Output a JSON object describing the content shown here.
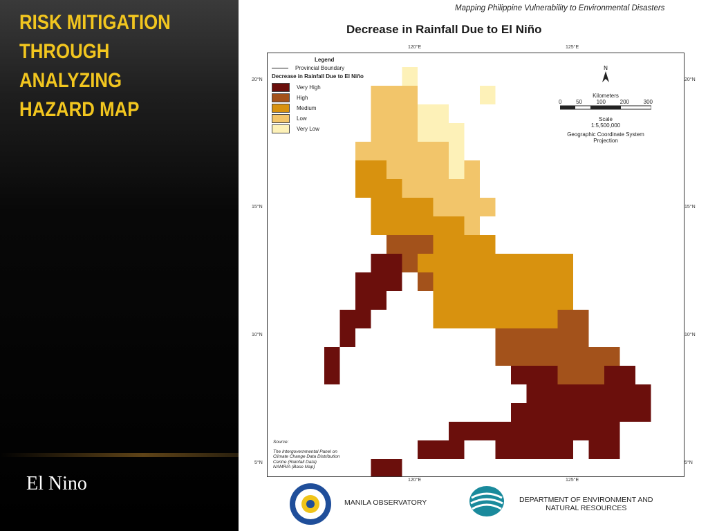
{
  "slide": {
    "title": "RISK MITIGATION\nTHROUGH ANALYZING\nHAZARD MAP",
    "caption": "El Nino"
  },
  "map": {
    "header": "Mapping Philippine Vulnerability to Environmental Disasters",
    "title": "Decrease in Rainfall Due to El Niño",
    "top_ticks": [
      "120°E",
      "125°E"
    ],
    "bottom_ticks": [
      "120°E",
      "125°E"
    ],
    "left_ticks": [
      "20°N",
      "15°N",
      "10°N",
      "5°N"
    ],
    "right_ticks": [
      "20°N",
      "15°N",
      "10°N",
      "5°N"
    ],
    "legend": {
      "title": "Legend",
      "boundary_label": "Provincial Boundary",
      "subtitle": "Decrease in Rainfall Due to El Niño",
      "classes": [
        {
          "label": "Very High",
          "color": "#6b0f0c"
        },
        {
          "label": "High",
          "color": "#a3521b"
        },
        {
          "label": "Medium",
          "color": "#d8920f"
        },
        {
          "label": "Low",
          "color": "#f2c56a"
        },
        {
          "label": "Very Low",
          "color": "#fdf1b8"
        }
      ]
    },
    "north_label": "N",
    "scale": {
      "unit": "Kilometers",
      "ticks": [
        "0",
        "50",
        "100",
        "200",
        "300"
      ],
      "scale_label": "Scale",
      "ratio": "1:5,500,000",
      "projection": "Geographic Coordinate System\nProjection"
    },
    "source": {
      "heading": "Source:",
      "lines": "The Intergovernmental Panel on\nClimate Change Data Distribution\nCentre (Rainfall Data)\nNAMRIA (Base Map)"
    },
    "cell_grid": [
      "     A                ",
      "   BBB    A          ",
      "   BBBAA             ",
      "   BBBAAA            ",
      "  BBBBBBA            ",
      "  CCBBBBAB           ",
      "  CCCBBBBB           ",
      "   CCCCBBBB          ",
      "   CCCCCCB           ",
      "    DDDCCCC          ",
      "   EEDCCCCCCCCCC     ",
      "  EEE DCCCCCCCCC     ",
      "  EE   CCCCCCCCC     ",
      " EE    CCCCCCCCDD    ",
      " E         DDDDDD    ",
      "E          DDDDDDDD  ",
      "E           EEEDDDEE ",
      "             EEEEEEEE",
      "            EEEEEEEEE",
      "        EEEEEEEEEEE  ",
      "      EEE  EEEEE EE  ",
      "   EE                "
    ]
  },
  "logos": {
    "left_org": "MANILA OBSERVATORY",
    "right_org": "DEPARTMENT OF ENVIRONMENT AND\nNATURAL RESOURCES"
  }
}
